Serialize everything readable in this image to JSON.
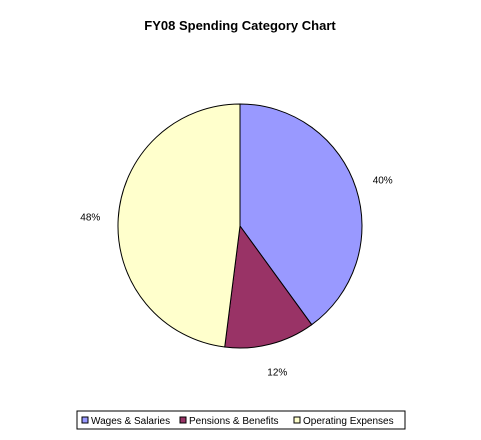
{
  "chart_data": {
    "type": "pie",
    "title": "FY08 Spending Category Chart",
    "legend_position": "bottom",
    "start_angle_deg": 0,
    "direction": "clockwise",
    "slices": [
      {
        "name": "Wages & Salaries",
        "value": 40,
        "label": "40%",
        "color": "#9999ff"
      },
      {
        "name": "Pensions & Benefits",
        "value": 12,
        "label": "12%",
        "color": "#993366"
      },
      {
        "name": "Operating Expenses",
        "value": 48,
        "label": "48%",
        "color": "#ffffcc"
      }
    ]
  }
}
